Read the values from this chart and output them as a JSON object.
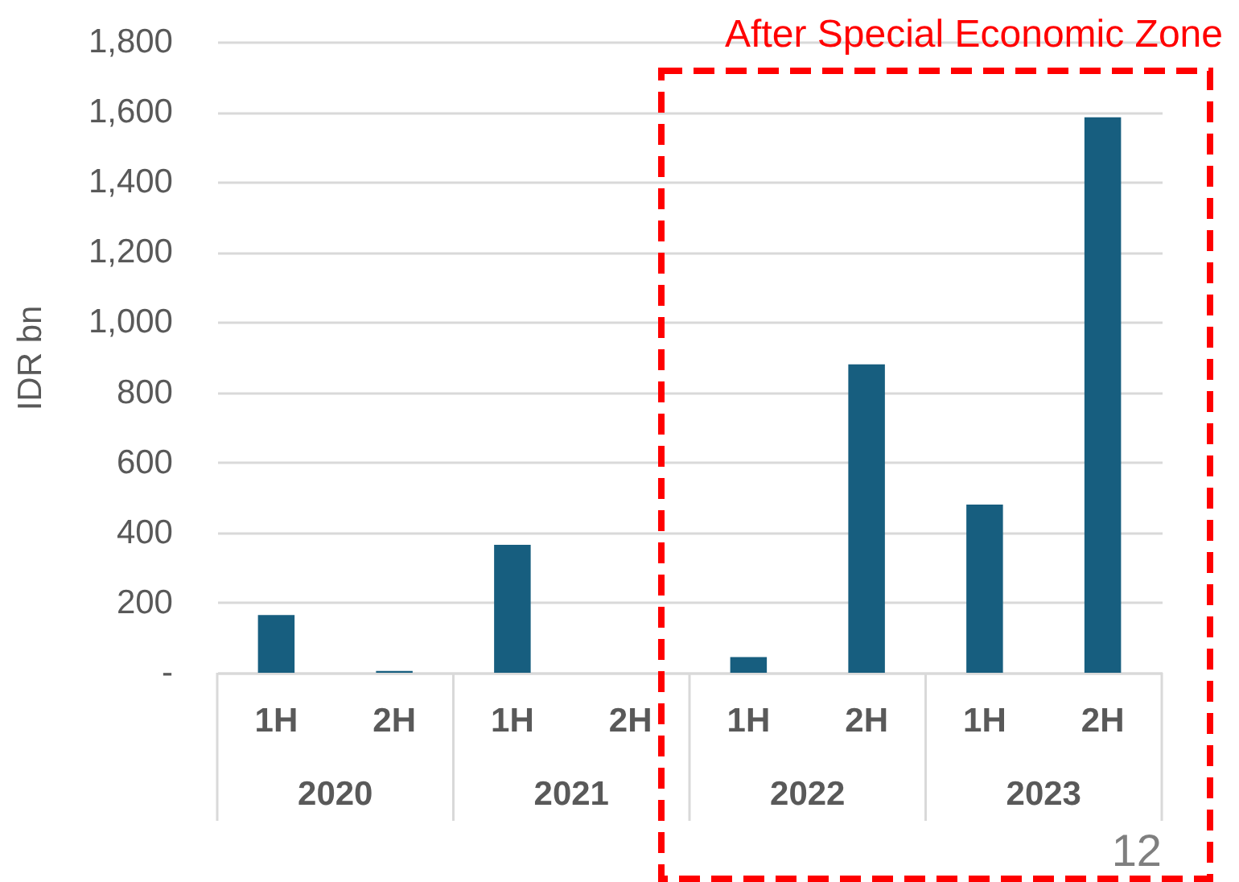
{
  "chart_data": {
    "type": "bar",
    "ylabel": "IDR bn",
    "categories": [
      "1H",
      "2H",
      "1H",
      "2H",
      "1H",
      "2H",
      "1H",
      "2H"
    ],
    "values": [
      165,
      5,
      365,
      0,
      45,
      880,
      480,
      1585
    ],
    "color": "#175e7f",
    "ylim": [
      0,
      1800
    ],
    "yticks": [
      {
        "value": 0,
        "label": "-"
      },
      200,
      400,
      600,
      800,
      {
        "value": 1000,
        "label": "1,000"
      },
      {
        "value": 1200,
        "label": "1,200"
      },
      {
        "value": 1400,
        "label": "1,400"
      },
      {
        "value": 1600,
        "label": "1,600"
      },
      {
        "value": 1800,
        "label": "1,800"
      }
    ],
    "grid": "y",
    "annotations": [
      "After Special Economic Zone",
      "2020",
      "2021",
      "2022",
      "2023",
      "12"
    ]
  }
}
